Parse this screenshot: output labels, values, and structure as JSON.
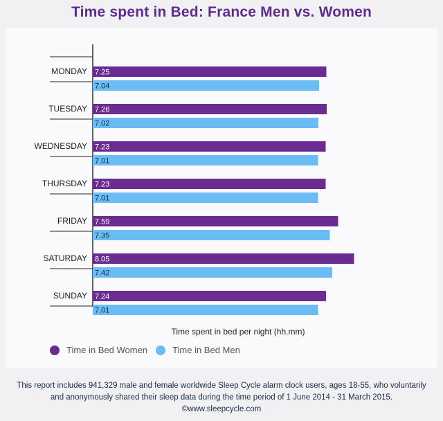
{
  "colors": {
    "women": "#6a2c91",
    "men": "#6bbcf4",
    "title": "#5e2b8f"
  },
  "chart_data": {
    "type": "bar",
    "orientation": "horizontal",
    "title": "Time spent in Bed: France Men vs. Women",
    "xlabel": "Time spent in bed per night (hh.mm)",
    "ylabel": "",
    "categories": [
      "MONDAY",
      "TUESDAY",
      "WEDNESDAY",
      "THURSDAY",
      "FRIDAY",
      "SATURDAY",
      "SUNDAY"
    ],
    "series": [
      {
        "name": "Time in Bed Women",
        "values": [
          7.25,
          7.26,
          7.23,
          7.23,
          7.59,
          8.05,
          7.24
        ],
        "labels": [
          "7.25",
          "7.26",
          "7.23",
          "7.23",
          "7.59",
          "8.05",
          "7.24"
        ]
      },
      {
        "name": "Time in Bed Men",
        "values": [
          7.04,
          7.02,
          7.01,
          7.01,
          7.35,
          7.42,
          7.01
        ],
        "labels": [
          "7.04",
          "7.02",
          "7.01",
          "7.01",
          "7.35",
          "7.42",
          "7.01"
        ]
      }
    ],
    "xlim": [
      0,
      8.4
    ],
    "grid": false,
    "legend_position": "bottom-left"
  },
  "legend": {
    "women": "Time in Bed Women",
    "men": "Time in Bed Men"
  },
  "footer": {
    "line1": "This report includes 941,329 male and female worldwide Sleep Cycle alarm clock users, ages 18-55, who voluntarily",
    "line2": "and anonymously shared their sleep data during the time period of 1 June 2014 - 31 March 2015.",
    "line3": "©www.sleepcycle.com"
  }
}
